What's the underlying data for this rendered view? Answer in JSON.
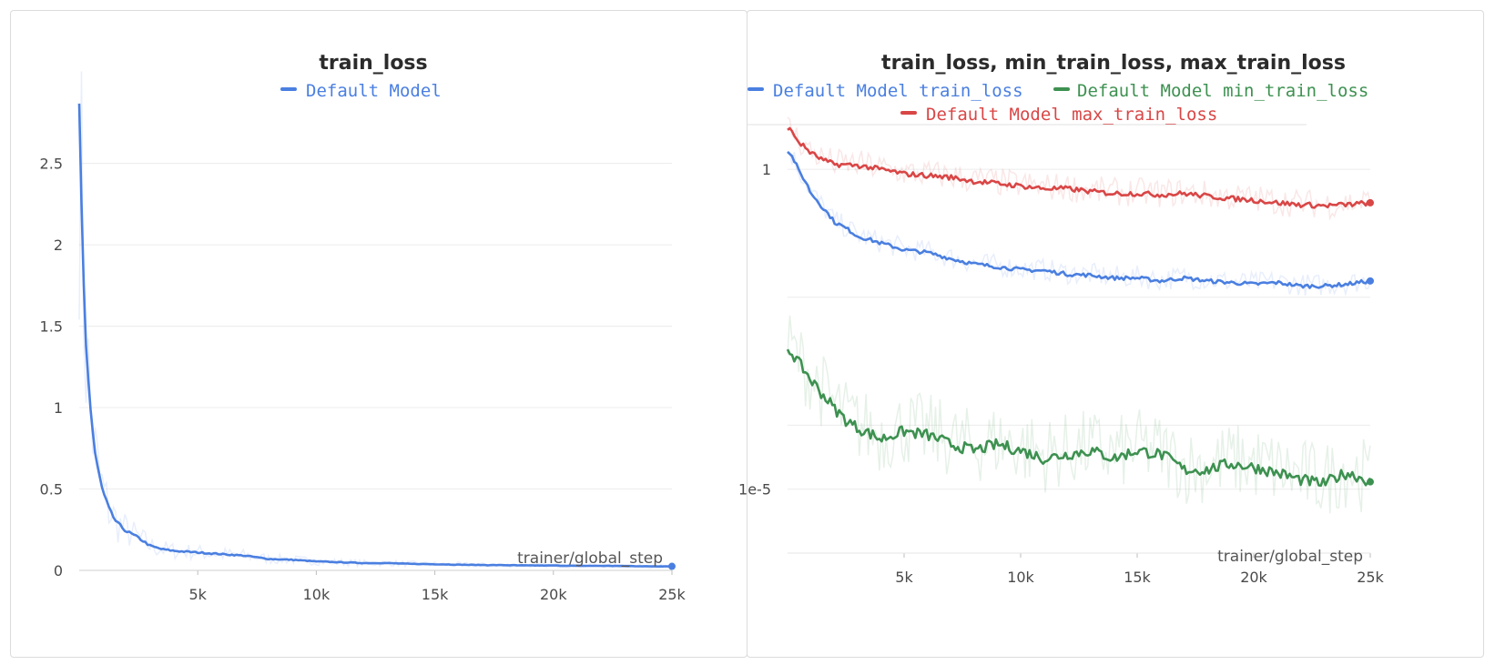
{
  "colors": {
    "blue": "#4a7fe0",
    "green": "#3d9150",
    "red": "#d94646"
  },
  "chart_data": [
    {
      "type": "line",
      "title": "train_loss",
      "xlabel": "trainer/global_step",
      "ylabel": "",
      "x_ticks": [
        "5k",
        "10k",
        "15k",
        "20k",
        "25k"
      ],
      "y_ticks": [
        "0",
        "0.5",
        "1",
        "1.5",
        "2",
        "2.5"
      ],
      "xlim": [
        0,
        25000
      ],
      "ylim": [
        0,
        2.85
      ],
      "grid": true,
      "legend": "top-center",
      "series": [
        {
          "name": "Default Model",
          "color": "#4a7fe0",
          "x": [
            0,
            150,
            300,
            500,
            700,
            1000,
            1300,
            1600,
            2000,
            2500,
            3000,
            3500,
            4000,
            5000,
            6000,
            7000,
            8000,
            9000,
            10000,
            11000,
            12000,
            13000,
            14000,
            15000,
            16000,
            17000,
            18000,
            19000,
            20000,
            21000,
            22000,
            23000,
            24000,
            25000
          ],
          "y": [
            2.8,
            1.9,
            1.35,
            0.95,
            0.68,
            0.48,
            0.36,
            0.29,
            0.24,
            0.2,
            0.15,
            0.13,
            0.12,
            0.11,
            0.1,
            0.09,
            0.07,
            0.065,
            0.055,
            0.05,
            0.045,
            0.045,
            0.04,
            0.038,
            0.035,
            0.033,
            0.032,
            0.03,
            0.03,
            0.028,
            0.028,
            0.027,
            0.025,
            0.025
          ]
        }
      ]
    },
    {
      "type": "line",
      "title": "train_loss, min_train_loss, max_train_loss",
      "xlabel": "trainer/global_step",
      "ylabel": "",
      "x_ticks": [
        "5k",
        "10k",
        "15k",
        "20k",
        "25k"
      ],
      "y_ticks": [
        "1",
        "1e-5"
      ],
      "y_scale": "log",
      "xlim": [
        0,
        25000
      ],
      "ylim": [
        1e-06,
        5
      ],
      "grid": true,
      "legend": "top-center",
      "series": [
        {
          "name": "Default Model train_loss",
          "color": "#4a7fe0",
          "x": [
            0,
            500,
            1000,
            1500,
            2000,
            3000,
            4000,
            5000,
            6000,
            7000,
            8000,
            9000,
            10000,
            11000,
            12000,
            13000,
            14000,
            15000,
            16000,
            17000,
            18000,
            19000,
            20000,
            21000,
            22000,
            23000,
            24000,
            25000
          ],
          "y": [
            2.0,
            0.9,
            0.42,
            0.25,
            0.15,
            0.09,
            0.07,
            0.055,
            0.05,
            0.04,
            0.033,
            0.03,
            0.027,
            0.026,
            0.023,
            0.022,
            0.02,
            0.02,
            0.018,
            0.02,
            0.018,
            0.017,
            0.016,
            0.017,
            0.015,
            0.015,
            0.016,
            0.018
          ]
        },
        {
          "name": "Default Model min_train_loss",
          "color": "#3d9150",
          "x": [
            0,
            500,
            1000,
            1500,
            2000,
            2500,
            3000,
            4000,
            5000,
            6000,
            7000,
            8000,
            9000,
            10000,
            11000,
            12000,
            13000,
            14000,
            15000,
            16000,
            17000,
            18000,
            19000,
            20000,
            21000,
            22000,
            23000,
            24000,
            25000
          ],
          "y": [
            0.0016,
            0.0009,
            0.0005,
            0.0003,
            0.00018,
            0.00012,
            9e-05,
            6e-05,
            8e-05,
            7e-05,
            5e-05,
            4e-05,
            5e-05,
            4e-05,
            3e-05,
            3.5e-05,
            4e-05,
            3e-05,
            4e-05,
            3.5e-05,
            2e-05,
            2e-05,
            2.5e-05,
            2.2e-05,
            1.8e-05,
            1.4e-05,
            1.2e-05,
            1.8e-05,
            1.3e-05
          ]
        },
        {
          "name": "Default Model max_train_loss",
          "color": "#d94646",
          "x": [
            0,
            500,
            1000,
            1500,
            2000,
            3000,
            4000,
            5000,
            6000,
            7000,
            8000,
            9000,
            10000,
            11000,
            12000,
            13000,
            14000,
            15000,
            16000,
            17000,
            18000,
            19000,
            20000,
            21000,
            22000,
            23000,
            24000,
            25000
          ],
          "y": [
            4.5,
            2.6,
            1.8,
            1.4,
            1.2,
            1.15,
            1.0,
            0.85,
            0.8,
            0.75,
            0.65,
            0.6,
            0.55,
            0.5,
            0.5,
            0.45,
            0.42,
            0.42,
            0.4,
            0.42,
            0.38,
            0.35,
            0.33,
            0.3,
            0.28,
            0.27,
            0.28,
            0.3
          ]
        }
      ]
    }
  ]
}
